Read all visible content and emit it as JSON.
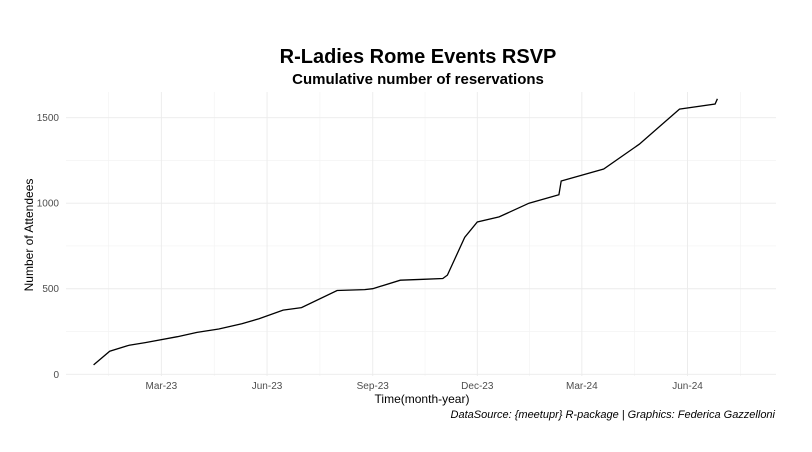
{
  "chart_data": {
    "type": "line",
    "title": "R-Ladies Rome Events RSVP",
    "subtitle": "Cumulative number of reservations",
    "xlabel": "Time(month-year)",
    "ylabel": "Number of Attendees",
    "caption": "DataSource: {meetupr} R-package | Graphics: Federica Gazzelloni",
    "x_tick_labels": [
      "Mar-23",
      "Jun-23",
      "Sep-23",
      "Dec-23",
      "Mar-24",
      "Jun-24"
    ],
    "x_tick_dates": [
      "2023-03-01",
      "2023-06-01",
      "2023-09-01",
      "2023-12-01",
      "2024-03-01",
      "2024-06-01"
    ],
    "xlim": [
      "2022-12-08",
      "2024-08-17"
    ],
    "y_ticks": [
      0,
      500,
      1000,
      1500
    ],
    "ylim": [
      -10,
      1650
    ],
    "grid": true,
    "series": [
      {
        "color": "#000000",
        "x": [
          "2023-01-01",
          "2023-01-15",
          "2023-02-01",
          "2023-02-15",
          "2023-03-15",
          "2023-04-01",
          "2023-04-20",
          "2023-05-10",
          "2023-05-25",
          "2023-06-15",
          "2023-07-01",
          "2023-08-01",
          "2023-08-25",
          "2023-09-01",
          "2023-09-25",
          "2023-10-15",
          "2023-11-01",
          "2023-11-05",
          "2023-11-20",
          "2023-12-01",
          "2023-12-20",
          "2024-01-15",
          "2024-02-10",
          "2024-02-12",
          "2024-03-20",
          "2024-04-20",
          "2024-05-25",
          "2024-06-25",
          "2024-06-27"
        ],
        "y": [
          55,
          135,
          170,
          185,
          220,
          245,
          265,
          295,
          325,
          375,
          390,
          490,
          495,
          500,
          550,
          555,
          560,
          580,
          800,
          890,
          920,
          1000,
          1050,
          1130,
          1200,
          1345,
          1550,
          1580,
          1610
        ]
      }
    ]
  }
}
